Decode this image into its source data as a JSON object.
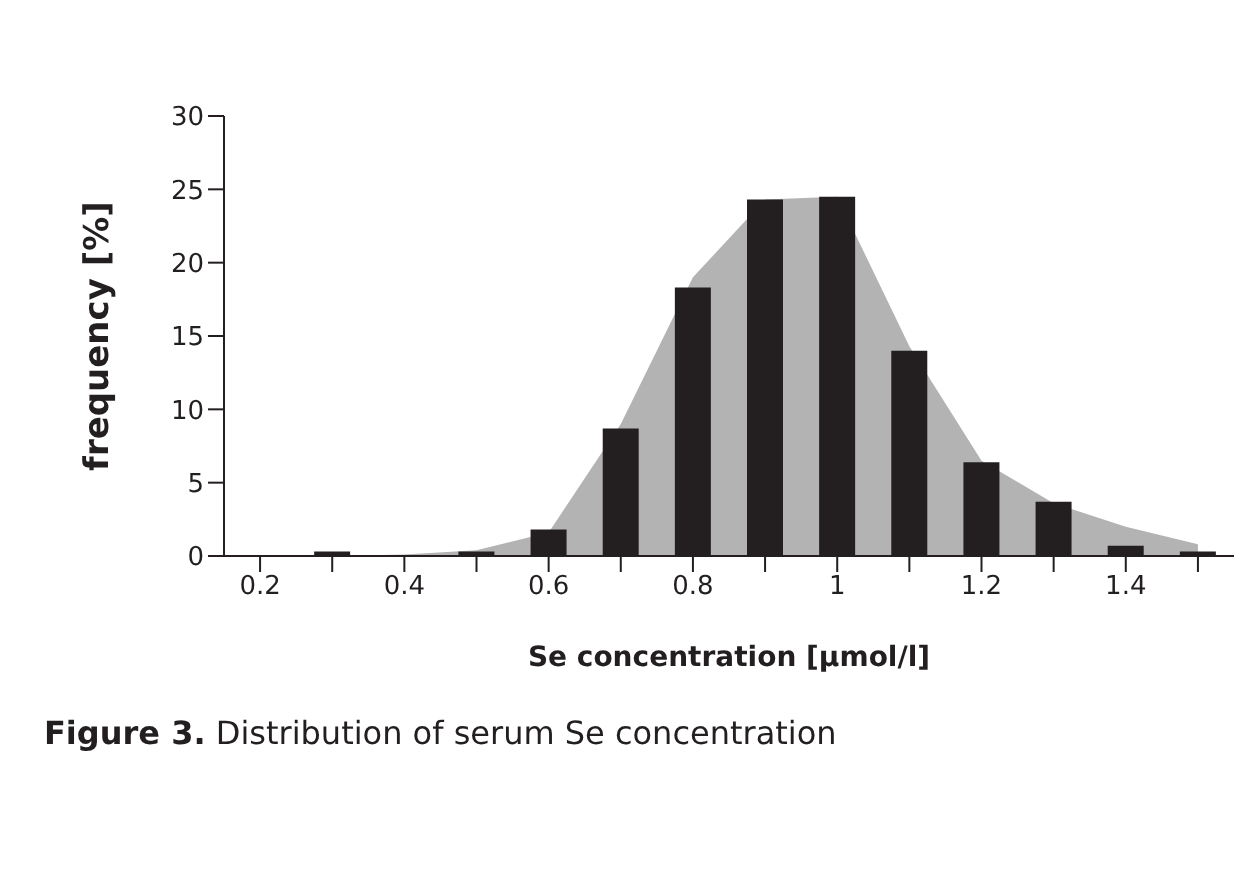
{
  "chart_data": {
    "type": "bar",
    "xlabel": "Se concentration  [µmol/l]",
    "ylabel": "frequency [%]",
    "categories": [
      "0.2",
      null,
      "0.4",
      null,
      "0.6",
      null,
      "0.8",
      null,
      "1",
      null,
      "1.2",
      null,
      "1.4",
      null
    ],
    "series": [
      {
        "type": "area",
        "color": "#b3b3b3",
        "values": [
          0,
          0,
          0.1,
          0.4,
          1.6,
          9,
          19,
          24.3,
          24.5,
          14.3,
          6.5,
          3.6,
          2,
          0.8
        ]
      },
      {
        "color": "#231f20",
        "values": [
          0,
          0.3,
          0,
          0.3,
          1.8,
          8.7,
          18.3,
          24.3,
          24.5,
          14,
          6.4,
          3.7,
          0.7,
          0.3
        ]
      }
    ],
    "ylim": [
      0,
      30
    ],
    "yticks": [
      0,
      5,
      10,
      15,
      20,
      25,
      30
    ],
    "grid": false,
    "legend": false,
    "annotations": [
      "Figure 3.",
      "Distribution of serum Se concentration"
    ]
  }
}
